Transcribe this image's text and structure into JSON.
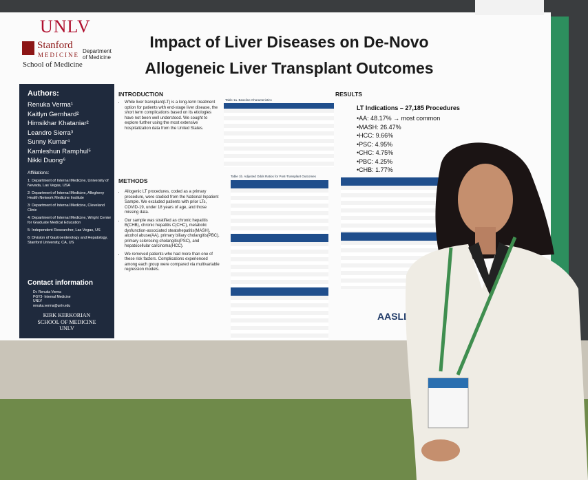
{
  "poster": {
    "logos": {
      "unlv": "UNLV",
      "stanford": "Stanford",
      "medicine": "MEDICINE",
      "school": "School of Medicine",
      "department": "Department of Medicine"
    },
    "title": [
      "Impact of Liver Diseases on De-Novo",
      "Allogeneic Liver Transplant Outcomes"
    ],
    "authors": {
      "heading": "Authors:",
      "names": [
        "Renuka Verma¹",
        "Kaitlyn Gernhard²",
        "Himsikhar Khataniar²",
        "Leandro Sierra³",
        "Sunny Kumar⁴",
        "Kamleshun Ramphul⁵",
        "Nikki Duong⁶"
      ]
    },
    "affiliations": {
      "heading": "Affiliations:",
      "items": [
        "1: Department of Internal Medicine, University of Nevada, Las Vegas, USA",
        "2: Department of Internal Medicine, Allegheny Health Network Medicine Institute",
        "3: Department of Internal Medicine, Cleveland Clinic",
        "4: Department of Internal Medicine, Wright Center for Graduate Medical Education",
        "5: Independent Researcher, Las Vegas, US",
        "6: Division of Gastroenterology and Hepatology, Stanford University, CA, US"
      ]
    },
    "contact": {
      "heading": "Contact information",
      "lines": [
        "Dr. Renuka Verma",
        "PGY3- Internal Medicine",
        "UNLV",
        "renuka.verma@unlv.edu"
      ]
    },
    "sidebar_footer": [
      "KIRK KERKORIAN",
      "SCHOOL OF MEDICINE",
      "UNLV"
    ],
    "introduction": {
      "heading": "INTRODUCTION",
      "text": "While liver transplant(LT) is a long-term treatment option for patients with end-stage liver disease, the short term complications based on its etiologies have not been well understood. We sought to explore further using the most extensive hospitalization data from the United States."
    },
    "methods": {
      "heading": "METHODS",
      "bullets": [
        "Allogenic LT procedures, coded as a primary procedure, were studied from the National Inpatient Sample. We excluded patients with prior LTs, COVID-19, under 18 years of age, and those missing data.",
        "Our sample was stratified as chronic hepatitis B(CHB), chronic hepatitis C(CHC), metabolic dysfunction-associated steatohepatitis(MASH), alcohol abuse(AA), primary biliary cholangitis(PBC), primary sclerosing cholangitis(PSC), and hepatocellular carcinoma(HCC).",
        "We removed patients who had more than one of these risk factors. Complications experienced among each group were compared via multivariable regression models."
      ]
    },
    "tables": [
      "Table 1a. Baseline Characteristics",
      "Table 1b. Adjusted Odds Ratios for Post-Transplant Outcomes"
    ],
    "results": {
      "heading": "RESULTS",
      "subheading": "LT Indications – 27,185 Procedures",
      "items": [
        "•AA: 48.17% → most common",
        "•MASH: 26.47%",
        "•HCC: 9.66%",
        "•PSC: 4.95%",
        "•CHC: 4.75%",
        "•PBC: 4.25%",
        "•CHB: 1.77%"
      ]
    },
    "sponsor": "AASLD"
  }
}
